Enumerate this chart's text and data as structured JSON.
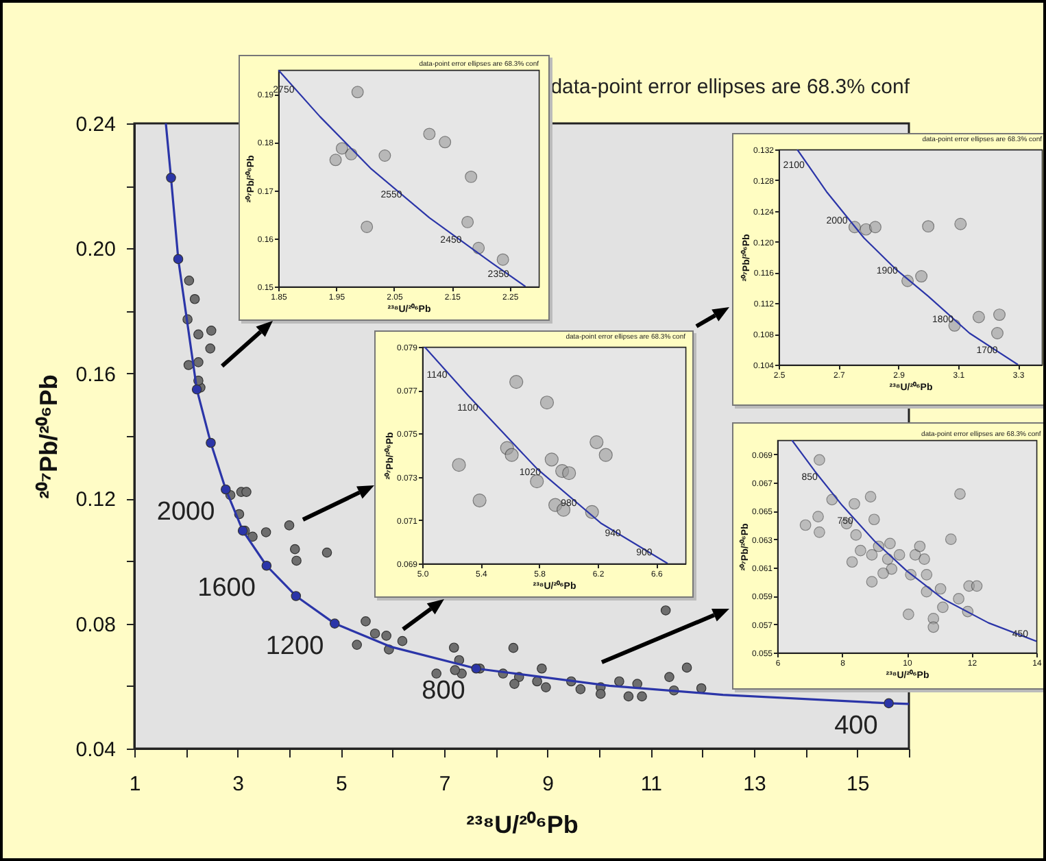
{
  "chart_data": [
    {
      "type": "scatter",
      "xlabel": "²³⁸U/²⁰⁶Pb",
      "ylabel": "²⁰⁷Pb/²⁰⁶Pb",
      "xlim": [
        1,
        16
      ],
      "ylim": [
        0.04,
        0.24
      ],
      "xticks": [
        1,
        {
          "value": 2,
          "label": null
        },
        3,
        {
          "value": 4,
          "label": null
        },
        5,
        {
          "value": 6,
          "label": null
        },
        7,
        {
          "value": 8,
          "label": null
        },
        9,
        {
          "value": 10,
          "label": null
        },
        11,
        {
          "value": 12,
          "label": null
        },
        13,
        {
          "value": 14,
          "label": null
        },
        15,
        {
          "value": 16,
          "label": null
        }
      ],
      "yticks": [
        0.04,
        {
          "value": 0.06,
          "label": null
        },
        0.08,
        {
          "value": 0.1,
          "label": null
        },
        0.12,
        {
          "value": 0.14,
          "label": null
        },
        0.16,
        {
          "value": 0.18,
          "label": null
        },
        {
          "value": 0.2,
          "label": "0.20"
        },
        {
          "value": 0.22,
          "label": null
        },
        0.24
      ],
      "annotations": [
        "data-point error ellipses are 68.3% conf",
        {
          "text": "2000",
          "x": 2.77,
          "y": 0.1229
        },
        {
          "text": "1600",
          "x": 3.56,
          "y": 0.0985
        },
        {
          "text": "1200",
          "x": 4.88,
          "y": 0.08
        },
        {
          "text": "800",
          "x": 7.62,
          "y": 0.0656
        },
        {
          "text": "400",
          "x": 15.61,
          "y": 0.0545
        }
      ],
      "series": [
        {
          "type": "scatter",
          "marker": "circle",
          "color": "#6e6e6e",
          "x": [
            2.06,
            2.17,
            2.03,
            2.24,
            2.49,
            2.47,
            2.24,
            2.05,
            2.28,
            2.24,
            2.86,
            3.07,
            3.17,
            3.03,
            3.14,
            3.29,
            3.55,
            4.0,
            4.11,
            4.14,
            4.73,
            5.48,
            5.66,
            5.88,
            5.31,
            5.93,
            6.19,
            7.19,
            7.29,
            8.34,
            6.85,
            7.34,
            7.21,
            7.69,
            8.14,
            8.45,
            8.89,
            8.8,
            9.46,
            8.97,
            10.03,
            10.39,
            10.74,
            10.03,
            10.83,
            11.36,
            11.7,
            11.29,
            11.98,
            11.45,
            10.57,
            9.64,
            8.36
          ],
          "values": [
            0.1897,
            0.1838,
            0.1773,
            0.1725,
            0.1737,
            0.168,
            0.1636,
            0.1627,
            0.1555,
            0.1577,
            0.1211,
            0.1221,
            0.1221,
            0.115,
            0.1097,
            0.1078,
            0.1092,
            0.1114,
            0.1038,
            0.1001,
            0.1027,
            0.0807,
            0.0768,
            0.0761,
            0.0732,
            0.0717,
            0.0744,
            0.0723,
            0.0683,
            0.0722,
            0.064,
            0.064,
            0.0651,
            0.0656,
            0.064,
            0.0629,
            0.0656,
            0.0615,
            0.0615,
            0.0596,
            0.0596,
            0.0615,
            0.0607,
            0.0575,
            0.0567,
            0.0629,
            0.0659,
            0.0842,
            0.0593,
            0.0586,
            0.0567,
            0.059,
            0.0607
          ]
        },
        {
          "type": "line",
          "marker": "none",
          "color": "#2b35a8",
          "x": [
            1.61,
            1.71,
            1.85,
            2.21,
            2.48,
            2.77,
            3.1,
            3.56,
            4.13,
            4.88,
            5.96,
            7.62,
            10.2,
            12.4,
            15.61,
            16
          ],
          "values": [
            0.24,
            0.2226,
            0.1966,
            0.1549,
            0.1378,
            0.1229,
            0.1097,
            0.0985,
            0.0888,
            0.08,
            0.0726,
            0.0656,
            0.0601,
            0.0572,
            0.0545,
            0.0543
          ]
        },
        {
          "type": "scatter",
          "marker": "circle",
          "color": "#2b35a8",
          "x": [
            1.71,
            1.85,
            2.21,
            2.48,
            2.77,
            3.1,
            3.56,
            4.13,
            4.88,
            7.62,
            15.61
          ],
          "values": [
            0.2226,
            0.1966,
            0.1549,
            0.1378,
            0.1229,
            0.1097,
            0.0985,
            0.0888,
            0.08,
            0.0656,
            0.0545
          ]
        }
      ]
    },
    {
      "type": "scatter",
      "xlabel": "²³⁸U/²⁰⁶Pb",
      "ylabel": "²⁰⁷Pb/²⁰⁶Pb",
      "xlim": [
        1.85,
        2.3
      ],
      "ylim": [
        0.15,
        0.195
      ],
      "xticks": [
        1.85,
        1.95,
        2.05,
        2.15,
        2.25
      ],
      "yticks": [
        0.15,
        0.16,
        0.17,
        0.18,
        0.19
      ],
      "annotations": [
        "data-point error ellipses are 68.3% conf",
        {
          "text": "2750",
          "x": 1.892,
          "y": 0.1894
        },
        {
          "text": "2550",
          "x": 2.078,
          "y": 0.1676
        },
        {
          "text": "2450",
          "x": 2.181,
          "y": 0.1582
        },
        {
          "text": "2350",
          "x": 2.263,
          "y": 0.1512
        }
      ],
      "series": [
        {
          "type": "scatter",
          "marker": "circle",
          "color": "#9a9a9a",
          "x": [
            1.987,
            1.976,
            1.96,
            1.949,
            2.111,
            2.138,
            2.034,
            2.183,
            2.003,
            2.177,
            2.196,
            2.238
          ],
          "values": [
            0.1904,
            0.1775,
            0.1787,
            0.1763,
            0.1817,
            0.18,
            0.1772,
            0.1728,
            0.1624,
            0.1634,
            0.158,
            0.1556
          ]
        },
        {
          "type": "line",
          "marker": "none",
          "color": "#2b35a8",
          "x": [
            1.85,
            1.922,
            2.011,
            2.111,
            2.219,
            2.277
          ],
          "values": [
            0.195,
            0.1853,
            0.1744,
            0.1643,
            0.1549,
            0.15
          ]
        }
      ]
    },
    {
      "type": "scatter",
      "xlabel": "²³⁸U/²⁰⁶Pb",
      "ylabel": "²⁰⁷Pb/²⁰⁶Pb",
      "xlim": [
        2.5,
        3.38
      ],
      "ylim": [
        0.104,
        0.132
      ],
      "xticks": [
        2.5,
        2.7,
        2.9,
        3.1,
        3.3
      ],
      "yticks": [
        0.104,
        0.108,
        0.112,
        0.116,
        {
          "value": 0.12,
          "label": "0.120"
        },
        0.124,
        0.128,
        0.132
      ],
      "annotations": [
        "data-point error ellipses are 68.3% conf",
        {
          "text": "2100",
          "x": 2.614,
          "y": 0.1291
        },
        {
          "text": "2000",
          "x": 2.758,
          "y": 0.1218
        },
        {
          "text": "1900",
          "x": 2.926,
          "y": 0.1153
        },
        {
          "text": "1800",
          "x": 3.112,
          "y": 0.109
        },
        {
          "text": "1700",
          "x": 3.26,
          "y": 0.105
        }
      ],
      "series": [
        {
          "type": "scatter",
          "marker": "circle",
          "color": "#9a9a9a",
          "x": [
            2.792,
            2.754,
            2.823,
            3.0,
            3.108,
            2.977,
            2.931,
            3.088,
            3.169,
            3.238,
            3.231
          ],
          "values": [
            0.1216,
            0.1219,
            0.1219,
            0.122,
            0.1223,
            0.1155,
            0.1149,
            0.1091,
            0.1102,
            0.1105,
            0.1081
          ]
        },
        {
          "type": "line",
          "marker": "none",
          "color": "#2b35a8",
          "x": [
            2.562,
            2.662,
            2.785,
            2.892,
            3.0,
            3.138,
            3.3
          ],
          "values": [
            0.132,
            0.1264,
            0.1205,
            0.1164,
            0.1129,
            0.1081,
            0.104
          ]
        }
      ]
    },
    {
      "type": "scatter",
      "xlabel": "²³⁸U/²⁰⁶Pb",
      "ylabel": "²⁰⁷Pb/²⁰⁶Pb",
      "xlim": [
        5.0,
        6.8
      ],
      "ylim": [
        0.069,
        0.079
      ],
      "xticks": [
        {
          "value": 5,
          "label": "5.0"
        },
        5.4,
        5.8,
        6.2,
        6.6
      ],
      "yticks": [
        0.069,
        0.071,
        0.073,
        0.075,
        0.077,
        0.079
      ],
      "annotations": [
        "data-point error ellipses are 68.3% conf",
        {
          "text": "1140",
          "x": 5.228,
          "y": 0.0774
        },
        {
          "text": "1100",
          "x": 5.438,
          "y": 0.07586
        },
        {
          "text": "1020",
          "x": 5.867,
          "y": 0.0729
        },
        {
          "text": "980",
          "x": 6.114,
          "y": 0.07148
        },
        {
          "text": "940",
          "x": 6.415,
          "y": 0.07007
        },
        {
          "text": "900",
          "x": 6.629,
          "y": 0.0692
        }
      ],
      "series": [
        {
          "type": "scatter",
          "marker": "circle",
          "color": "#9a9a9a",
          "x": [
            5.643,
            5.853,
            5.58,
            5.251,
            5.392,
            6.192,
            6.255,
            5.885,
            5.957,
            6.004,
            5.784,
            5.91,
            5.966,
            6.161,
            5.612
          ],
          "values": [
            0.07738,
            0.07643,
            0.07433,
            0.07355,
            0.07191,
            0.0746,
            0.07401,
            0.0738,
            0.07327,
            0.07317,
            0.07279,
            0.0717,
            0.07148,
            0.07138,
            0.07401
          ]
        },
        {
          "type": "line",
          "marker": "none",
          "color": "#2b35a8",
          "x": [
            5.016,
            5.314,
            5.784,
            6.224,
            6.678
          ],
          "values": [
            0.079,
            0.07675,
            0.07338,
            0.07085,
            0.069
          ]
        }
      ]
    },
    {
      "type": "scatter",
      "xlabel": "²³⁸U/²⁰⁶Pb",
      "ylabel": "²⁰⁷Pb/²⁰⁶Pb",
      "xlim": [
        6,
        14
      ],
      "ylim": [
        0.055,
        0.07
      ],
      "xticks": [
        6,
        8,
        10,
        12,
        14
      ],
      "yticks": [
        0.055,
        0.057,
        0.059,
        0.061,
        0.063,
        0.065,
        0.067,
        0.069
      ],
      "annotations": [
        "data-point error ellipses are 68.3% conf",
        {
          "text": "850",
          "x": 7.5,
          "y": 0.0669
        },
        {
          "text": "750",
          "x": 8.6,
          "y": 0.0638
        },
        {
          "text": "450",
          "x": 14,
          "y": 0.0558
        }
      ],
      "series": [
        {
          "type": "scatter",
          "marker": "circle",
          "color": "#9a9a9a",
          "x": [
            7.3,
            6.87,
            7.26,
            7.3,
            7.69,
            8.14,
            8.38,
            8.88,
            8.99,
            8.43,
            8.31,
            8.57,
            8.92,
            9.13,
            8.92,
            9.48,
            9.41,
            9.53,
            9.77,
            9.27,
            10.12,
            10.26,
            10.4,
            10.54,
            10.05,
            10.61,
            10.61,
            11.04,
            10.82,
            10.82,
            11.11,
            11.36,
            11.64,
            11.6,
            11.92,
            12.16,
            11.88
          ],
          "values": [
            0.0686,
            0.064,
            0.0646,
            0.0635,
            0.0658,
            0.0641,
            0.0655,
            0.066,
            0.0644,
            0.0633,
            0.0614,
            0.0622,
            0.0619,
            0.0625,
            0.06,
            0.0627,
            0.0616,
            0.0609,
            0.0619,
            0.0606,
            0.0605,
            0.0619,
            0.0625,
            0.0616,
            0.0577,
            0.0593,
            0.0605,
            0.0595,
            0.0574,
            0.0568,
            0.0582,
            0.063,
            0.0662,
            0.0588,
            0.0597,
            0.0597,
            0.0579
          ]
        },
        {
          "type": "line",
          "marker": "none",
          "color": "#2b35a8",
          "x": [
            6.45,
            7.16,
            8.0,
            8.99,
            9.98,
            11.11,
            12.52,
            14
          ],
          "values": [
            0.07,
            0.0678,
            0.0654,
            0.0629,
            0.0608,
            0.0588,
            0.0571,
            0.0558
          ]
        }
      ]
    }
  ]
}
